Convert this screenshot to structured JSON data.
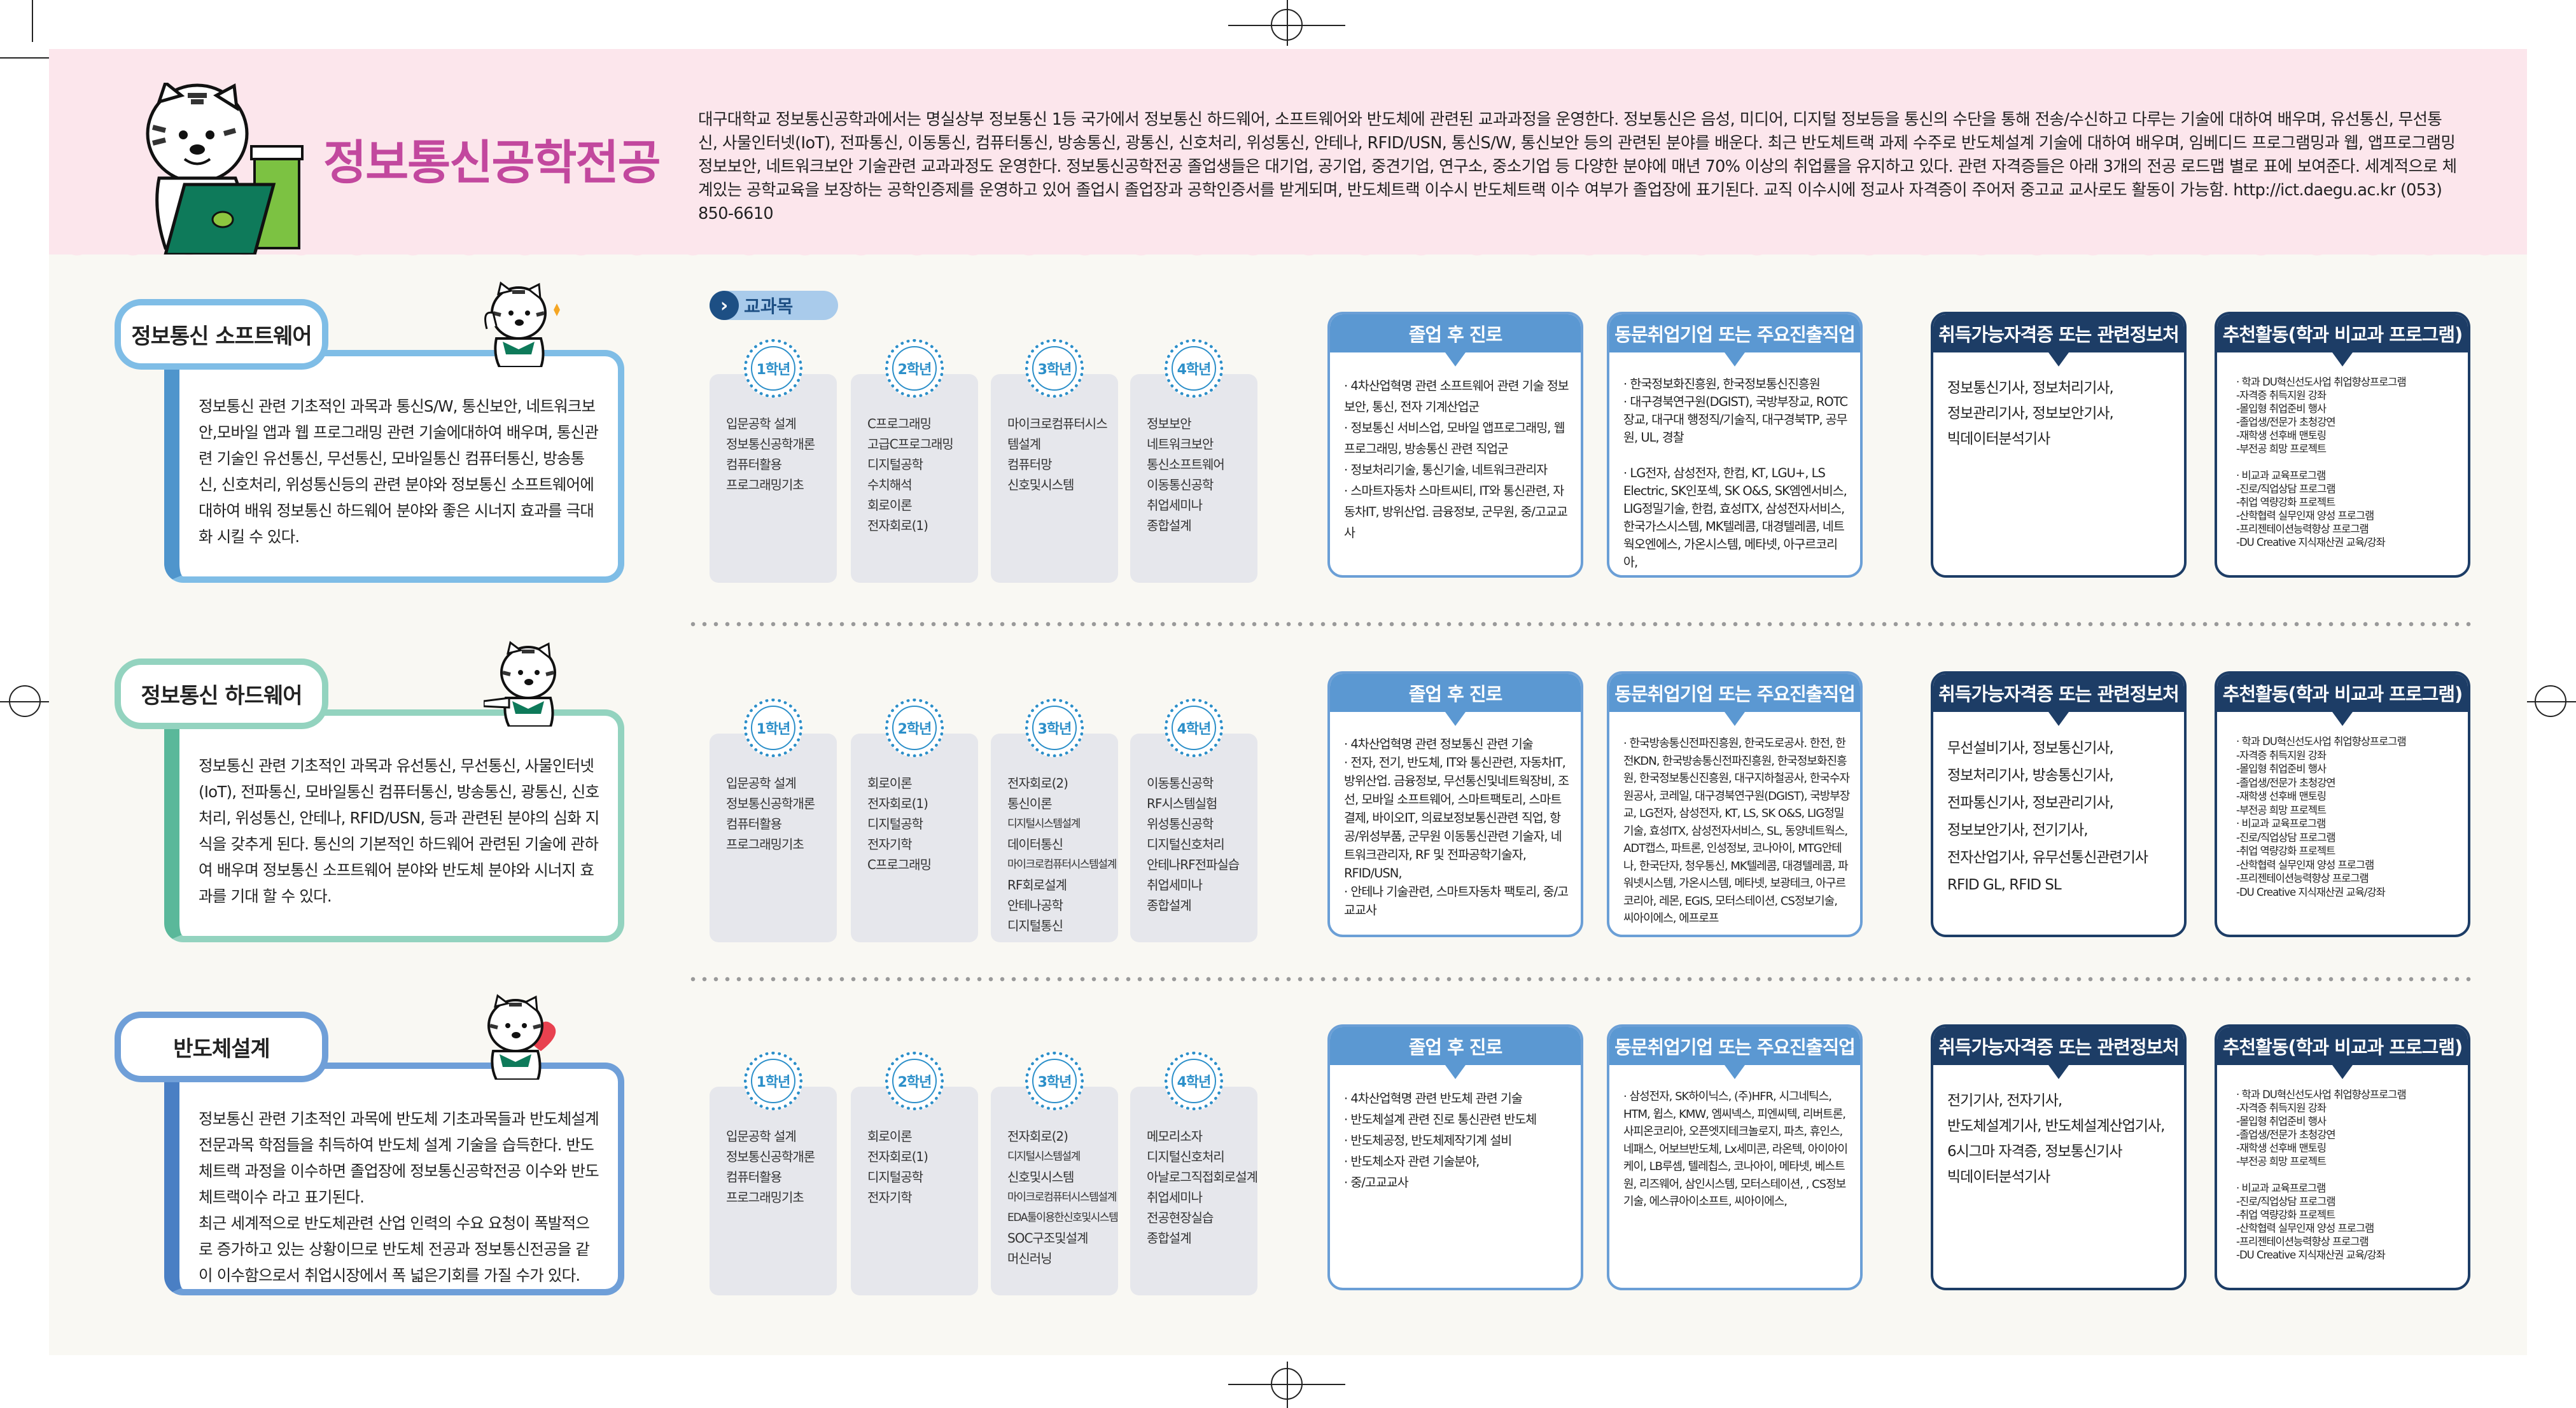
{
  "header": {
    "title": "정보통신공학전공",
    "intro": "대구대학교 정보통신공학과에서는 명실상부 정보통신 1등 국가에서 정보통신 하드웨어, 소프트웨어와 반도체에 관련된 교과과정을 운영한다. 정보통신은 음성, 미디어, 디지털 정보등을 통신의 수단을 통해 전송/수신하고 다루는 기술에 대하여 배우며, 유선통신, 무선통신, 사물인터넷(IoT), 전파통신, 이동통신, 컴퓨터통신, 방송통신, 광통신, 신호처리, 위성통신, 안테나, RFID/USN, 통신S/W, 통신보안 등의 관련된 분야를 배운다. 최근 반도체트랙 과제 수주로 반도체설계 기술에 대하여 배우며, 임베디드 프로그램밍과 웹, 앱프로그램밍 정보보안, 네트워크보안 기술관련 교과과정도 운영한다. 정보통신공학전공 졸업생들은 대기업, 공기업, 중견기업, 연구소, 중소기업 등 다양한 분야에 매년 70% 이상의 취업률을 유지하고 있다. 관련 자격증들은 아래 3개의 전공 로드맵 별로 표에 보여준다. 세계적으로 체계있는 공학교육을 보장하는 공학인증제를 운영하고 있어 졸업시 졸업장과 공학인증서를 받게되며, 반도체트랙 이수시 반도체트랙 이수 여부가 졸업장에 표기된다. 교직 이수시에 정교사 자격증이 주어저 중고교 교사로도 활동이 가능함. http://ict.daegu.ac.kr (053) 850-6610"
  },
  "courses_label": "교과목",
  "box_headers": {
    "career": "졸업 후 진로",
    "companies": "동문취업기업 또는 주요진출직업",
    "certs": "취득가능자격증 또는 관련정보처",
    "activities": "추천활동(학과 비교과 프로그램)"
  },
  "colors": {
    "title": "#c2489e",
    "career_header": "#5b98d2",
    "navy": "#1d3d66",
    "section_borders": [
      "#7fbde6",
      "#93d3bf",
      "#6f9fd8"
    ]
  },
  "years": [
    "1학년",
    "2학년",
    "3학년",
    "4학년"
  ],
  "sections": [
    {
      "title": "정보통신 소프트웨어",
      "desc": [
        "정보통신 관련 기초적인 과목과 통신S/W, 통신보안, 네트워크보안,모바일 앱과 웹 프로그래밍 관련 기술에대하여 배우며, 통신관련 기술인 유선통신, 무선통신,  모바일통신 컴퓨터통신, 방송통신, 신호처리, 위성통신등의 관련 분야와  정보통신 소프트웨어에 대하여 배워 정보통신 하드웨어 분야와 좋은 시너지 효과를 극대화 시킬 수 있다."
      ],
      "courses": [
        [
          "입문공학 설계",
          "정보통신공학개론",
          "컴퓨터활용",
          "프로그래밍기초"
        ],
        [
          "C프로그래밍",
          "고급C프로그래밍",
          "디지털공학",
          "수치해석",
          "회로이론",
          "전자회로(1)"
        ],
        [
          "마이크로컴퓨터시스",
          "템설계",
          "컴퓨터망",
          "신호및시스템"
        ],
        [
          "정보보안",
          "네트워크보안",
          "통신소프트웨어",
          "이동통신공학",
          "취업세미나",
          "종합설계"
        ]
      ],
      "career": [
        "· 4차산업혁명 관련 소프트웨어 관련 기술 정보보안, 통신, 전자 기계산업군",
        "· 정보통신 서비스업, 모바일 앱프로그래밍, 웹프로그래밍, 방송통신 관련 직업군",
        "· 정보처리기술, 통신기술, 네트워크관리자",
        "· 스마트자동차 스마트씨티, IT와 통신관련, 자동차IT, 방위산업. 금융정보, 군무원, 중/고교교사"
      ],
      "companies": [
        "· 한국정보화진흥원, 한국정보통신진흥원",
        "· 대구경북연구원(DGIST), 국방부장교, ROTC장교, 대구대 행정직/기술직, 대구경북TP, 공무원, UL, 경찰",
        "",
        "· LG전자, 삼성전자, 한컴, KT, LGU+, LS Electric, SK인포섹, SK O&S, SK엠엔서비스, LIG정밀기술, 한컴, 효성ITX, 삼성전자서비스, 한국가스시스템, MK텔레콤, 대경텔레콤, 네트웍오엔에스, 가온시스템, 메타넷, 아구르코리아,"
      ],
      "certs": [
        "정보통신기사, 정보처리기사,",
        "정보관리기사, 정보보안기사,",
        "빅데이터분석기사"
      ],
      "activities": [
        "· 학과 DU혁신선도사업 취업향상프로그램",
        "-자격증 취득지원 강좌",
        "-몰입형 취업준비 행사",
        "-졸업생/전문가 초청강연",
        "-재학생 선후배 맨토링",
        "-부전공 희망 프로젝트",
        "",
        "· 비교과 교육프로그램",
        "-진로/직업상담 프로그램",
        "-취업 역량강화 프로젝트",
        "-산학협력 실무인재 양성 프로그램",
        "-프리젠테이션능력향상 프로그램",
        "-DU Creative 지식재산권 교육/강좌"
      ]
    },
    {
      "title": "정보통신 하드웨어",
      "desc": [
        "정보통신 관련 기초적인 과목과 유선통신, 무선통신, 사물인터넷(IoT), 전파통신, 모바일통신 컴퓨터통신, 방송통신, 광통신, 신호처리, 위성통신, 안테나, RFID/USN, 등과 관련된 분야의 심화 지식을 갖추게 된다. 통신의 기본적인 하드웨어 관련된 기술에 관하여 배우며 정보통신 소프트웨어 분야와 반도체 분야와 시너지 효과를 기대 할 수 있다."
      ],
      "courses": [
        [
          "입문공학 설계",
          "정보통신공학개론",
          "컴퓨터활용",
          "프로그래밍기초"
        ],
        [
          "회로이론",
          "전자회로(1)",
          "디지털공학",
          "전자기학",
          "C프로그래밍"
        ],
        [
          "전자회로(2)",
          "통신이론",
          "디지털시스템설계",
          "데이터통신",
          "마이크로컴퓨터시스템설계",
          "RF회로설계",
          "안테나공학",
          "디지털통신"
        ],
        [
          "이동통신공학",
          "RF시스템실험",
          "위성통신공학",
          "디지털신호처리",
          "안테나RF전파실습",
          "취업세미나",
          "종합설계"
        ]
      ],
      "career": [
        "· 4차산업혁명 관련 정보통신 관련 기술",
        "· 전자, 전기, 반도체, IT와 통신관련, 자동차IT, 방위산업. 금융정보, 무선통신및네트웍장비, 조선, 모바일 소프트웨어, 스마트팩토리, 스마트결제, 바이오IT, 의료보정보통신관련 직업, 항공/위성부품, 군무원 이동통신관련 기술자, 네트워크관리자, RF 및 전파공학기술자, RFID/USN,",
        "· 안테나 기술관련, 스마트자동차 팩토리, 중/고교교사"
      ],
      "companies": [
        "· 한국방송통신전파진흥원, 한국도로공사. 한전, 한전KDN, 한국방송통신전파진흥원, 한국정보화진흥원, 한국정보통신진흥원, 대구지하철공사, 한국수자원공사, 코레일, 대구경북연구원(DGIST), 국방부장교, LG전자, 삼성전자, KT, LS, SK O&S, LIG정밀기술, 효성ITX, 삼성전자서비스,  SL, 동양네트웍스, ADT캡스, 파트론, 인성정보, 코나아이, MTG안테나, 한국단자, 청우통신, MK텔레콤, 대경텔레콤, 파워넷시스템, 가온시스템, 메타넷, 보광테크, 아구르코리아,  레몬, EGIS, 모터스테이션, CS정보기술, 씨아이에스, 에프로프"
      ],
      "certs": [
        "무선설비기사, 정보통신기사,",
        "정보처리기사, 방송통신기사,",
        "전파통신기사, 정보관리기사,",
        "정보보안기사, 전기기사,",
        "전자산업기사, 유무선통신관련기사",
        "RFID GL, RFID SL"
      ],
      "activities": [
        "· 학과 DU혁신선도사업 취업향상프로그램",
        "-자격증 취득지원 강좌",
        "-몰입형 취업준비 행사",
        "-졸업생/전문가 초청강연",
        "-재학생 선후배 맨토링",
        "-부전공 희망 프로젝트",
        "· 비교과 교육프로그램",
        "-진로/직업상담 프로그램",
        "-취업 역량강화 프로젝트",
        "-산학협력 실무인재 양성 프로그램",
        "-프리젠테이션능력향상 프로그램",
        "-DU Creative 지식재산권 교육/강좌"
      ]
    },
    {
      "title": "반도체설계",
      "desc": [
        "정보통신 관련 기초적인 과목에 반도체 기초과목들과 반도체설계 전문과목 학점들을 취득하여 반도체 설계 기술을 습득한다. 반도체트랙 과정을 이수하면 졸업장에 정보통신공학전공 이수와 반도체트랙이수 라고 표기된다.",
        "최근 세계적으로 반도체관련 산업 인력의 수요 요청이 폭발적으로 증가하고 있는 상황이므로 반도체 전공과 정보통신전공을 같이 이수함으로서 취업시장에서 폭 넓은기회를 가질 수가 있다."
      ],
      "courses": [
        [
          "입문공학 설계",
          "정보통신공학개론",
          "컴퓨터활용",
          "프로그래밍기초"
        ],
        [
          "회로이론",
          "전자회로(1)",
          "디지털공학",
          "전자기학"
        ],
        [
          "전자회로(2)",
          "디지털시스템설계",
          "신호및시스템",
          "마이크로컴퓨터시스템설계",
          "EDA툴이용한신호및시스템",
          "SOC구조및설계",
          "머신러닝"
        ],
        [
          "메모리소자",
          "디지털신호처리",
          "아날로그직접회로설계",
          "취업세미나",
          "전공현장실습",
          "종합설계"
        ]
      ],
      "career": [
        "· 4차산업혁명 관련 반도체 관련 기술",
        "· 반도체설계 관련 진로 통신관련 반도체",
        "· 반도체공정, 반도체제작기계 설비",
        "· 반도체소자 관련 기술분야,",
        "· 중/고교교사"
      ],
      "companies": [
        "· 삼성전자, SK하이닉스, (주)HFR, 시그네틱스, HTM, 윕스, KMW, 엠씨넥스, 피엔씨텍, 리버트론, 사피온코리아, 오픈엣지테크놀로지, 파츠, 휴인스, 네패스, 어보브반도체, Lx세미콘, 라온텍, 아이아이케이, LB루셈, 텔레칩스, 코나아이, 메타넷, 베스트원, 리즈웨어, 삼인시스템, 모터스테이션, , CS정보기술, 에스큐아이소프트, 씨아이에스,"
      ],
      "certs": [
        "전기기사, 전자기사,",
        "반도체설계기사, 반도체설계산업기사,",
        "6시그마 자격증, 정보통신기사",
        "빅데이터분석기사"
      ],
      "activities": [
        "· 학과 DU혁신선도사업 취업향상프로그램",
        "-자격증 취득지원 강좌",
        "-몰입형 취업준비 행사",
        "-졸업생/전문가 초청강연",
        "-재학생 선후배 맨토링",
        "-부전공 희망 프로젝트",
        "",
        "· 비교과 교육프로그램",
        "-진로/직업상담 프로그램",
        "-취업 역량강화 프로젝트",
        "-산학협력 실무인재 양성 프로그램",
        "-프리젠테이션능력향상 프로그램",
        "-DU Creative 지식재산권 교육/강좌"
      ]
    }
  ]
}
